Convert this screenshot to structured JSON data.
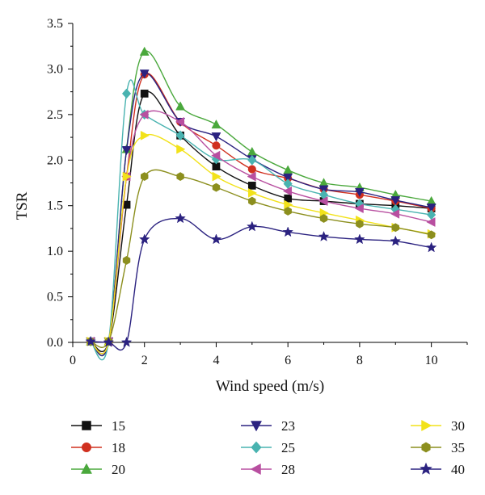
{
  "chart_data": {
    "type": "line",
    "title": "",
    "xlabel": "Wind speed (m/s)",
    "ylabel": "TSR",
    "xlim": [
      0,
      11
    ],
    "ylim": [
      0,
      3.5
    ],
    "xticks": [
      "0",
      "2",
      "4",
      "6",
      "8",
      "10"
    ],
    "yticks": [
      "0.0",
      "0.5",
      "1.0",
      "1.5",
      "2.0",
      "2.5",
      "3.0",
      "3.5"
    ],
    "grid": false,
    "legend_position": "bottom",
    "series": [
      {
        "name": "15",
        "color": "#111111",
        "marker": "square",
        "x": [
          0.5,
          1,
          1.5,
          2,
          3,
          4,
          5,
          6,
          7,
          8,
          9,
          10
        ],
        "y": [
          0.01,
          0.01,
          1.51,
          2.73,
          2.27,
          1.93,
          1.72,
          1.58,
          1.55,
          1.52,
          1.5,
          1.47
        ]
      },
      {
        "name": "18",
        "color": "#d0301f",
        "marker": "circle",
        "x": [
          0.5,
          1,
          1.5,
          2,
          3,
          4,
          5,
          6,
          7,
          8,
          9,
          10
        ],
        "y": [
          0.01,
          0.01,
          1.82,
          2.94,
          2.42,
          2.16,
          1.9,
          1.8,
          1.68,
          1.62,
          1.55,
          1.47
        ]
      },
      {
        "name": "20",
        "color": "#4aa83c",
        "marker": "triangle-up",
        "x": [
          0.5,
          1,
          1.5,
          2,
          3,
          4,
          5,
          6,
          7,
          8,
          9,
          10
        ],
        "y": [
          0.01,
          0.01,
          2.12,
          3.19,
          2.59,
          2.39,
          2.09,
          1.89,
          1.75,
          1.7,
          1.62,
          1.55
        ]
      },
      {
        "name": "23",
        "color": "#2b2280",
        "marker": "triangle-down",
        "x": [
          0.5,
          1,
          1.5,
          2,
          3,
          4,
          5,
          6,
          7,
          8,
          9,
          10
        ],
        "y": [
          0.01,
          0.01,
          2.11,
          2.95,
          2.42,
          2.26,
          2.01,
          1.81,
          1.68,
          1.65,
          1.56,
          1.48
        ]
      },
      {
        "name": "25",
        "color": "#49b3b0",
        "marker": "diamond",
        "x": [
          0.5,
          1,
          1.5,
          2,
          3,
          4,
          5,
          6,
          7,
          8,
          9,
          10
        ],
        "y": [
          0.01,
          0.01,
          2.73,
          2.5,
          2.27,
          2.01,
          2.0,
          1.74,
          1.62,
          1.52,
          1.46,
          1.4
        ]
      },
      {
        "name": "28",
        "color": "#b84fa0",
        "marker": "triangle-left",
        "x": [
          0.5,
          1,
          1.5,
          2,
          3,
          4,
          5,
          6,
          7,
          8,
          9,
          10
        ],
        "y": [
          0.01,
          0.01,
          1.82,
          2.5,
          2.42,
          2.05,
          1.82,
          1.66,
          1.55,
          1.47,
          1.41,
          1.32
        ]
      },
      {
        "name": "30",
        "color": "#f2e21a",
        "marker": "triangle-right",
        "x": [
          0.5,
          1,
          1.5,
          2,
          3,
          4,
          5,
          6,
          7,
          8,
          9,
          10
        ],
        "y": [
          0.01,
          0.01,
          1.82,
          2.27,
          2.12,
          1.82,
          1.64,
          1.51,
          1.42,
          1.34,
          1.26,
          1.19
        ]
      },
      {
        "name": "35",
        "color": "#8c8f1e",
        "marker": "hexagon",
        "x": [
          0.5,
          1,
          1.5,
          2,
          3,
          4,
          5,
          6,
          7,
          8,
          9,
          10
        ],
        "y": [
          0.01,
          0.01,
          0.9,
          1.82,
          1.82,
          1.7,
          1.55,
          1.44,
          1.36,
          1.3,
          1.26,
          1.18
        ]
      },
      {
        "name": "40",
        "color": "#2b2280",
        "marker": "star",
        "x": [
          0.5,
          1,
          1.5,
          2,
          3,
          4,
          5,
          6,
          7,
          8,
          9,
          10
        ],
        "y": [
          0.01,
          0.0,
          0.0,
          1.13,
          1.36,
          1.13,
          1.27,
          1.21,
          1.16,
          1.13,
          1.11,
          1.04
        ]
      }
    ]
  }
}
